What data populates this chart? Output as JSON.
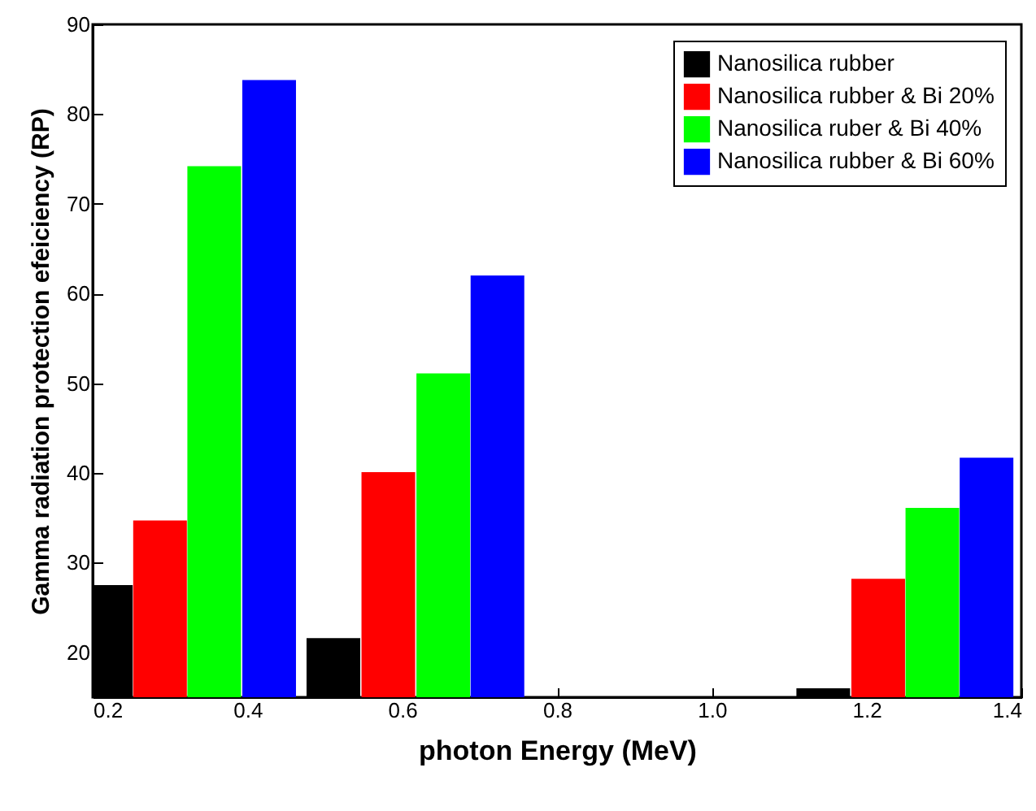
{
  "chart_data": {
    "type": "bar",
    "xlabel": "photon Energy (MeV)",
    "ylabel": "Gamma radiation protection efeiciency (RP)",
    "series": [
      {
        "name": "Nanosilica rubber",
        "color": "#000000",
        "x": [
          0.217,
          0.511,
          1.144
        ],
        "values": [
          27.5,
          21.6,
          16.0
        ]
      },
      {
        "name": "Nanosilica rubber & Bi 20%",
        "color": "#ff0000",
        "x": [
          0.287,
          0.582,
          1.215
        ],
        "values": [
          34.7,
          40.1,
          28.2
        ]
      },
      {
        "name": "Nanosilica ruber  & Bi 40%",
        "color": "#00ff00",
        "x": [
          0.357,
          0.653,
          1.285
        ],
        "values": [
          74.2,
          51.1,
          36.1
        ]
      },
      {
        "name": "Nanosilica rubber & Bi 60%",
        "color": "#0000ff",
        "x": [
          0.428,
          0.723,
          1.355
        ],
        "values": [
          83.8,
          62.0,
          41.7
        ]
      }
    ],
    "xlim": [
      0.2,
      1.4
    ],
    "xticks": [
      0.2,
      0.4,
      0.6,
      0.8,
      {
        "value": 1,
        "label": "1.0"
      },
      1.2,
      1.4
    ],
    "ylim": [
      15,
      90
    ],
    "yticks": [
      20,
      30,
      40,
      50,
      60,
      70,
      80,
      90
    ],
    "grid": false,
    "legend": "top right"
  }
}
